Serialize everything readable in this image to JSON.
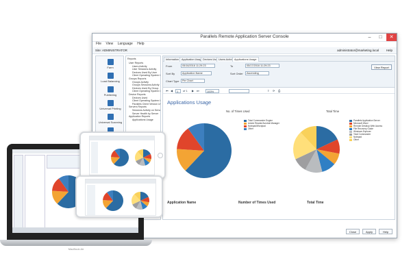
{
  "window": {
    "title": "Parallels Remote Application Server Console",
    "menu": [
      "File",
      "View",
      "Language",
      "Help"
    ],
    "site_label": "Site: ADMINISTRATOR",
    "user": "administrator@marketing.local",
    "help": "Help"
  },
  "sidebar": {
    "items": [
      "Farm",
      "Load Balancing",
      "Publishing",
      "Universal Printing",
      "Universal Scanning",
      "Connection"
    ]
  },
  "tree": {
    "header": "Reports",
    "rows": [
      "User Reports",
      "Users Activity",
      "User Sessions Activity",
      "Devices Used By User",
      "Client Operating System Use",
      "Groups Reports",
      "Groups Activity",
      "Groups Sessions Activity",
      "Devices Used By Group",
      "Client Operating System Use",
      "Device Reports",
      "Devices Used",
      "Client Operating System Used",
      "Parallels Client Version Used",
      "Servers Reports",
      "Sessions Activity on Server",
      "Server Health by Server",
      "Application Reports",
      "Applications Usage"
    ]
  },
  "tabs": [
    "Information",
    "Application Usage",
    "Devices Used",
    "Users Activity",
    "Applications Usage"
  ],
  "filters": {
    "from_label": "From",
    "from_value": "05/16/2016 11:29:23",
    "to_label": "To",
    "to_value": "05/17/2016 11:29:23",
    "sort_by_label": "Sort By",
    "sort_by_value": "Application Name",
    "sort_order_label": "Sort Order",
    "sort_order_value": "Ascending",
    "chart_type_label": "Chart Type",
    "chart_type_value": "Pie Chart",
    "view_report": "View Report"
  },
  "toolbar": {
    "page": "1",
    "of": "of 1",
    "zoom": "100%"
  },
  "report": {
    "title": "Applications Usage",
    "chart1_title": "No. of Times Used",
    "chart2_title": "Total Time",
    "columns": [
      "Application Name",
      "Number of Times Used",
      "Total Time"
    ]
  },
  "footer": {
    "close": "Close",
    "apply": "Apply",
    "help": "Help"
  },
  "laptop": {
    "label": "MacBook Air"
  },
  "chart_data": [
    {
      "type": "pie",
      "title": "No. of Times Used",
      "labels": [
        "Total Commander Engine",
        "Adobe Reader/Acrobat Manager",
        "Notepad/Wordpad",
        "Other"
      ],
      "values": [
        62,
        14,
        14,
        10
      ],
      "colors": [
        "#2b6ca3",
        "#f3a434",
        "#e0452b",
        "#3d7fbf"
      ]
    },
    {
      "type": "pie",
      "title": "Total Time",
      "labels": [
        "Parallels Application Server",
        "Microsoft Word",
        "Remote Desktop Web Access",
        "File Recovery Guide",
        "Windows Explorer",
        "Total Commander",
        "Notepad",
        "Other"
      ],
      "values": [
        18,
        10,
        8,
        10,
        12,
        10,
        20,
        12
      ],
      "colors": [
        "#2b6ca3",
        "#e0452b",
        "#f3a434",
        "#2f7fc4",
        "#b9bcbf",
        "#9e9ea0",
        "#ffdf7a",
        "#f9d15a"
      ]
    }
  ],
  "colors": {
    "accent": "#2f6fb3",
    "title_blue": "#3b66a6",
    "close_red": "#e04343"
  }
}
